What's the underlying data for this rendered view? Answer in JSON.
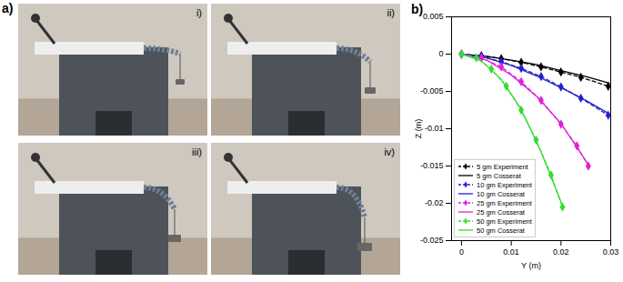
{
  "figure": {
    "panel_labels": [
      "a)",
      "b)"
    ],
    "photo_labels": [
      "i)",
      "ii)",
      "iii)",
      "iv)"
    ]
  },
  "chart_data": {
    "type": "line",
    "xlabel": "Y (m)",
    "ylabel": "Z (m)",
    "xlim": [
      -0.002,
      0.03
    ],
    "xticks": [
      0,
      0.01,
      0.02,
      0.03
    ],
    "ylim": [
      -0.025,
      0.005
    ],
    "yticks": [
      0.005,
      0,
      -0.005,
      -0.01,
      -0.015,
      -0.02,
      -0.025
    ],
    "legend": "lower left",
    "series": [
      {
        "name": "5 gm Experiment",
        "color": "#000000",
        "marker": "diamond",
        "line_style": "dashed",
        "x": [
          0,
          0.004,
          0.008,
          0.012,
          0.016,
          0.02,
          0.024,
          0.0295
        ],
        "values": [
          0,
          -0.0002,
          -0.0006,
          -0.0011,
          -0.0017,
          -0.0024,
          -0.0031,
          -0.0043
        ]
      },
      {
        "name": "5 gm Cosserat",
        "color": "#000000",
        "line_style": "solid",
        "x": [
          0,
          0.005,
          0.01,
          0.015,
          0.02,
          0.025,
          0.0297
        ],
        "values": [
          0,
          -0.0003,
          -0.0008,
          -0.0014,
          -0.0022,
          -0.003,
          -0.0039
        ]
      },
      {
        "name": "10 gm Experiment",
        "color": "#2323c8",
        "marker": "diamond",
        "line_style": "dashed",
        "x": [
          0,
          0.004,
          0.008,
          0.012,
          0.016,
          0.02,
          0.024,
          0.0295
        ],
        "values": [
          0,
          -0.0003,
          -0.001,
          -0.0019,
          -0.003,
          -0.0044,
          -0.0059,
          -0.0082
        ]
      },
      {
        "name": "10 gm Cosserat",
        "color": "#2323c8",
        "line_style": "solid",
        "x": [
          0,
          0.005,
          0.01,
          0.015,
          0.02,
          0.025,
          0.0297
        ],
        "values": [
          0,
          -0.0005,
          -0.0015,
          -0.0029,
          -0.0045,
          -0.0062,
          -0.008
        ]
      },
      {
        "name": "25 gm Experiment",
        "color": "#e020d8",
        "marker": "diamond",
        "line_style": "dashed",
        "x": [
          0,
          0.004,
          0.008,
          0.012,
          0.016,
          0.02,
          0.0232,
          0.0255
        ],
        "values": [
          0,
          -0.0005,
          -0.0017,
          -0.0037,
          -0.0062,
          -0.0094,
          -0.0123,
          -0.015
        ]
      },
      {
        "name": "25 gm Cosserat",
        "color": "#e020d8",
        "line_style": "solid",
        "x": [
          0,
          0.005,
          0.01,
          0.015,
          0.02,
          0.0255
        ],
        "values": [
          0,
          -0.0008,
          -0.0028,
          -0.0056,
          -0.0093,
          -0.0148
        ]
      },
      {
        "name": "50 gm Experiment",
        "color": "#33dd33",
        "marker": "diamond",
        "line_style": "dashed",
        "x": [
          0,
          0.003,
          0.006,
          0.009,
          0.012,
          0.015,
          0.018,
          0.0203
        ],
        "values": [
          0,
          -0.0005,
          -0.002,
          -0.0043,
          -0.0075,
          -0.0115,
          -0.0162,
          -0.0205
        ]
      },
      {
        "name": "50 gm Cosserat",
        "color": "#33dd33",
        "line_style": "solid",
        "x": [
          0,
          0.004,
          0.008,
          0.012,
          0.016,
          0.0203
        ],
        "values": [
          0,
          -0.0009,
          -0.0034,
          -0.0074,
          -0.0131,
          -0.0203
        ]
      }
    ]
  }
}
